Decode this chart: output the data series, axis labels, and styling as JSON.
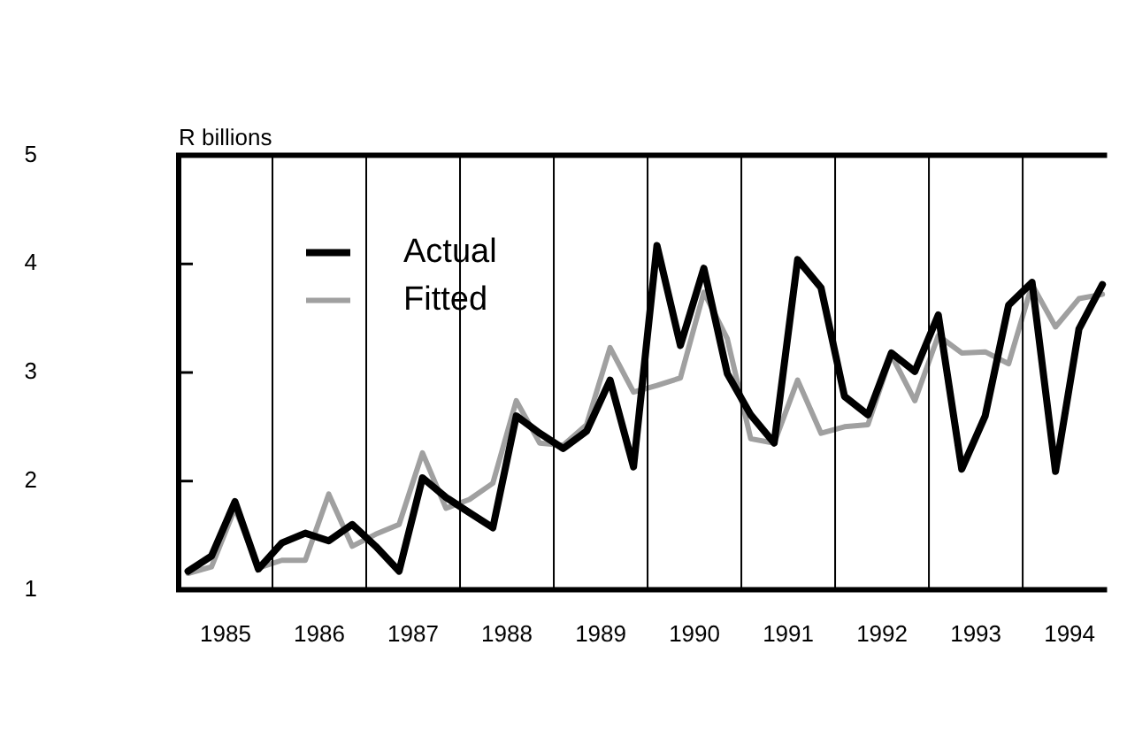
{
  "chart_data": {
    "type": "line",
    "ylabel": "R billions",
    "x": [
      1985.1,
      1985.35,
      1985.6,
      1985.85,
      1986.1,
      1986.35,
      1986.6,
      1986.85,
      1987.1,
      1987.35,
      1987.6,
      1987.85,
      1988.1,
      1988.35,
      1988.6,
      1988.85,
      1989.1,
      1989.35,
      1989.6,
      1989.85,
      1990.1,
      1990.35,
      1990.6,
      1990.85,
      1991.1,
      1991.35,
      1991.6,
      1991.85,
      1992.1,
      1992.35,
      1992.6,
      1992.85,
      1993.1,
      1993.35,
      1993.6,
      1993.85,
      1994.1,
      1994.35,
      1994.6,
      1994.85
    ],
    "series": [
      {
        "name": "Actual",
        "color": "#000000",
        "values": [
          1.17,
          1.31,
          1.81,
          1.19,
          1.43,
          1.52,
          1.45,
          1.6,
          1.4,
          1.17,
          2.03,
          1.85,
          1.71,
          1.57,
          2.6,
          2.44,
          2.3,
          2.46,
          2.93,
          2.13,
          4.17,
          3.25,
          3.96,
          2.99,
          2.61,
          2.35,
          4.04,
          3.78,
          2.78,
          2.61,
          3.18,
          3.01,
          3.53,
          2.11,
          2.6,
          3.62,
          3.83,
          2.09,
          3.4,
          3.81
        ]
      },
      {
        "name": "Fitted",
        "color": "#a0a0a0",
        "values": [
          1.15,
          1.21,
          1.75,
          1.2,
          1.27,
          1.27,
          1.88,
          1.4,
          1.51,
          1.6,
          2.26,
          1.75,
          1.83,
          1.98,
          2.74,
          2.35,
          2.33,
          2.52,
          3.23,
          2.82,
          2.88,
          2.95,
          3.74,
          3.31,
          2.39,
          2.35,
          2.93,
          2.44,
          2.5,
          2.52,
          3.16,
          2.74,
          3.34,
          3.18,
          3.19,
          3.08,
          3.81,
          3.42,
          3.68,
          3.72
        ]
      }
    ],
    "xlim": [
      1985,
      1994.9
    ],
    "xticks": [
      {
        "value": 1985.5,
        "label": "1985"
      },
      {
        "value": 1986.5,
        "label": "1986"
      },
      {
        "value": 1987.5,
        "label": "1987"
      },
      {
        "value": 1988.5,
        "label": "1988"
      },
      {
        "value": 1989.5,
        "label": "1989"
      },
      {
        "value": 1990.5,
        "label": "1990"
      },
      {
        "value": 1991.5,
        "label": "1991"
      },
      {
        "value": 1992.5,
        "label": "1992"
      },
      {
        "value": 1993.5,
        "label": "1993"
      },
      {
        "value": 1994.5,
        "label": "1994"
      }
    ],
    "ylim": [
      1,
      5
    ],
    "yticks": [
      1,
      2,
      3,
      4,
      5
    ],
    "ref_lines": [
      {
        "axis": "x",
        "value": 1986,
        "color": "#000000"
      },
      {
        "axis": "x",
        "value": 1987,
        "color": "#000000"
      },
      {
        "axis": "x",
        "value": 1988,
        "color": "#000000"
      },
      {
        "axis": "x",
        "value": 1989,
        "color": "#000000"
      },
      {
        "axis": "x",
        "value": 1990,
        "color": "#000000"
      },
      {
        "axis": "x",
        "value": 1991,
        "color": "#000000"
      },
      {
        "axis": "x",
        "value": 1992,
        "color": "#000000"
      },
      {
        "axis": "x",
        "value": 1993,
        "color": "#000000"
      },
      {
        "axis": "x",
        "value": 1994,
        "color": "#000000"
      }
    ],
    "grid": false,
    "legend": "top left",
    "marker": "none",
    "line_style": "solid"
  }
}
